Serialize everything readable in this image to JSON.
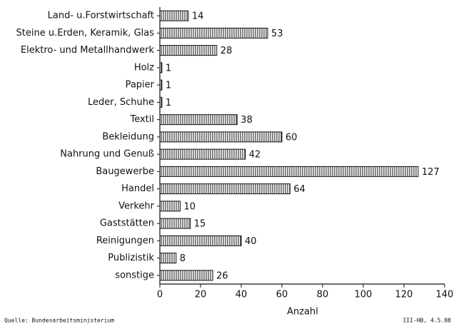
{
  "chart_data": {
    "type": "hbar",
    "categories": [
      "Land- u.Forstwirtschaft",
      "Steine u.Erden, Keramik, Glas",
      "Elektro- und Metallhandwerk",
      "Holz",
      "Papier",
      "Leder, Schuhe",
      "Textil",
      "Bekleidung",
      "Nahrung und Genuß",
      "Baugewerbe",
      "Handel",
      "Verkehr",
      "Gaststätten",
      "Reinigungen",
      "Publizistik",
      "sonstige"
    ],
    "values": [
      14,
      53,
      28,
      1,
      1,
      1,
      38,
      60,
      42,
      127,
      64,
      10,
      15,
      40,
      8,
      26
    ],
    "color": "#111111",
    "xlim": [
      0,
      140
    ],
    "xticks": [
      0,
      20,
      40,
      60,
      80,
      100,
      120,
      140
    ],
    "x_label": "Anzahl",
    "source": "Quelle: Bundesarbeitsministerium",
    "note": "III-HB, 4.5.88"
  }
}
